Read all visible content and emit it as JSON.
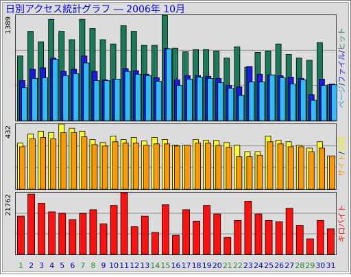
{
  "title": "日別アクセス統計グラフ ― 2006年 10月",
  "separator": "/",
  "chart_data": [
    {
      "type": "bar",
      "ylim": [
        0,
        1389
      ],
      "yticks": [
        1389
      ],
      "grid_divisions": 3,
      "series": [
        {
          "name": "ページ",
          "color": "#33bbff",
          "label_color": "#2299dd",
          "values": [
            435,
            556,
            565,
            806,
            593,
            620,
            759,
            528,
            528,
            546,
            648,
            611,
            593,
            519,
            945,
            463,
            546,
            574,
            556,
            500,
            426,
            333,
            509,
            509,
            602,
            565,
            482,
            537,
            269,
            463,
            472
          ]
        },
        {
          "name": "ファイル",
          "color": "#1a1ae0",
          "label_color": "#1a1ae0",
          "values": [
            528,
            676,
            695,
            824,
            648,
            676,
            852,
            648,
            537,
            546,
            685,
            657,
            611,
            565,
            950,
            537,
            593,
            593,
            583,
            556,
            463,
            444,
            713,
            611,
            602,
            593,
            574,
            556,
            343,
            546,
            482
          ]
        },
        {
          "name": "ヒット",
          "color": "#1a7a5a",
          "label_color": "#1a7a5a",
          "values": [
            852,
            1176,
            1037,
            1333,
            1176,
            1065,
            1333,
            1213,
            1065,
            1009,
            1250,
            1176,
            991,
            991,
            1389,
            954,
            907,
            935,
            935,
            917,
            824,
            972,
            704,
            898,
            917,
            1009,
            870,
            824,
            796,
            1028,
            472
          ]
        }
      ]
    },
    {
      "type": "bar",
      "ylim": [
        0,
        432
      ],
      "yticks": [
        432
      ],
      "grid_divisions": 3,
      "series": [
        {
          "name": "サイト",
          "color": "#ff9900",
          "label_color": "#ff9900",
          "values": [
            282,
            334,
            343,
            334,
            376,
            376,
            348,
            296,
            287,
            315,
            306,
            306,
            291,
            301,
            301,
            287,
            291,
            306,
            306,
            291,
            277,
            216,
            216,
            226,
            315,
            301,
            282,
            282,
            249,
            273,
            221
          ]
        },
        {
          "name": "訪問",
          "color": "#ffff33",
          "label_color": "#eeee22",
          "values": [
            306,
            367,
            385,
            376,
            432,
            404,
            385,
            329,
            310,
            353,
            329,
            343,
            320,
            343,
            329,
            291,
            291,
            329,
            324,
            324,
            310,
            291,
            249,
            249,
            353,
            324,
            315,
            291,
            273,
            315,
            221
          ]
        }
      ]
    },
    {
      "type": "bar",
      "ylim": [
        0,
        21762
      ],
      "yticks": [
        21762
      ],
      "grid_divisions": 3,
      "series": [
        {
          "name": "キロバイト",
          "color": "#ff1111",
          "label_color": "#ff1111",
          "values": [
            13500,
            21250,
            18000,
            15000,
            14500,
            12250,
            14500,
            15750,
            10750,
            17250,
            21762,
            9750,
            13500,
            7750,
            17500,
            6750,
            15750,
            11750,
            17250,
            14250,
            6000,
            12000,
            18750,
            14250,
            12000,
            11500,
            16250,
            10250,
            5500,
            12000,
            9000
          ]
        }
      ],
      "categories": [
        "1",
        "2",
        "3",
        "4",
        "5",
        "6",
        "7",
        "8",
        "9",
        "10",
        "11",
        "12",
        "13",
        "14",
        "15",
        "16",
        "17",
        "18",
        "19",
        "20",
        "21",
        "22",
        "23",
        "24",
        "25",
        "26",
        "27",
        "28",
        "29",
        "30",
        "31"
      ],
      "label_colors": [
        "#228833",
        "#0000aa",
        "#0000aa",
        "#0000aa",
        "#0000aa",
        "#0000aa",
        "#228833",
        "#228833",
        "#0000aa",
        "#0000aa",
        "#0000aa",
        "#0000aa",
        "#0000aa",
        "#228833",
        "#228833",
        "#0000aa",
        "#0000aa",
        "#0000aa",
        "#0000aa",
        "#0000aa",
        "#228833",
        "#228833",
        "#0000aa",
        "#0000aa",
        "#0000aa",
        "#0000aa",
        "#0000aa",
        "#228833",
        "#228833",
        "#0000aa",
        "#0000aa"
      ]
    }
  ]
}
